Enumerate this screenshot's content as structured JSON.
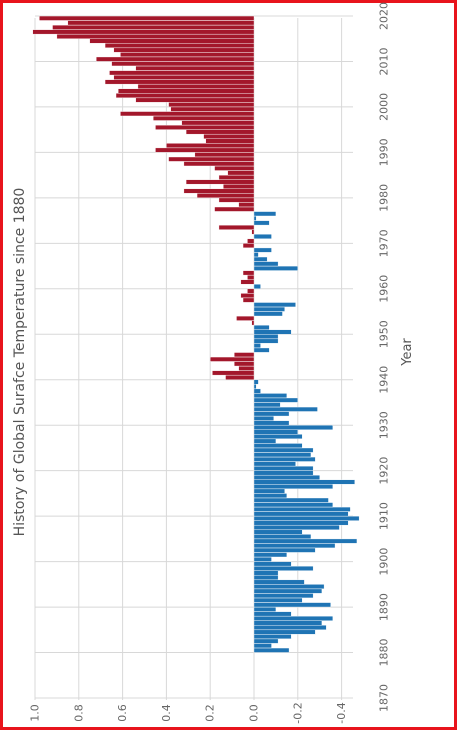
{
  "chart_data": {
    "type": "bar",
    "orientation": "rotated-90-clockwise",
    "title": "History of Global Surafce Temperature since 1880",
    "xlabel": "Year",
    "ylabel": "",
    "x": [
      1880,
      1881,
      1882,
      1883,
      1884,
      1885,
      1886,
      1887,
      1888,
      1889,
      1890,
      1891,
      1892,
      1893,
      1894,
      1895,
      1896,
      1897,
      1898,
      1899,
      1900,
      1901,
      1902,
      1903,
      1904,
      1905,
      1906,
      1907,
      1908,
      1909,
      1910,
      1911,
      1912,
      1913,
      1914,
      1915,
      1916,
      1917,
      1918,
      1919,
      1920,
      1921,
      1922,
      1923,
      1924,
      1925,
      1926,
      1927,
      1928,
      1929,
      1930,
      1931,
      1932,
      1933,
      1934,
      1935,
      1936,
      1937,
      1938,
      1939,
      1940,
      1941,
      1942,
      1943,
      1944,
      1945,
      1946,
      1947,
      1948,
      1949,
      1950,
      1951,
      1952,
      1953,
      1954,
      1955,
      1956,
      1957,
      1958,
      1959,
      1960,
      1961,
      1962,
      1963,
      1964,
      1965,
      1966,
      1967,
      1968,
      1969,
      1970,
      1971,
      1972,
      1973,
      1974,
      1975,
      1976,
      1977,
      1978,
      1979,
      1980,
      1981,
      1982,
      1983,
      1984,
      1985,
      1986,
      1987,
      1988,
      1989,
      1990,
      1991,
      1992,
      1993,
      1994,
      1995,
      1996,
      1997,
      1998,
      1999,
      2000,
      2001,
      2002,
      2003,
      2004,
      2005,
      2006,
      2007,
      2008,
      2009,
      2010,
      2011,
      2012,
      2013,
      2014,
      2015,
      2016,
      2017,
      2018,
      2019
    ],
    "values": [
      -0.16,
      -0.08,
      -0.11,
      -0.17,
      -0.28,
      -0.33,
      -0.31,
      -0.36,
      -0.17,
      -0.1,
      -0.35,
      -0.22,
      -0.27,
      -0.31,
      -0.32,
      -0.23,
      -0.11,
      -0.11,
      -0.27,
      -0.17,
      -0.08,
      -0.15,
      -0.28,
      -0.37,
      -0.47,
      -0.26,
      -0.22,
      -0.39,
      -0.43,
      -0.48,
      -0.43,
      -0.44,
      -0.36,
      -0.34,
      -0.15,
      -0.14,
      -0.36,
      -0.46,
      -0.3,
      -0.27,
      -0.27,
      -0.19,
      -0.28,
      -0.26,
      -0.27,
      -0.22,
      -0.1,
      -0.22,
      -0.2,
      -0.36,
      -0.16,
      -0.09,
      -0.16,
      -0.29,
      -0.12,
      -0.2,
      -0.15,
      -0.03,
      -0.01,
      -0.02,
      0.13,
      0.19,
      0.07,
      0.09,
      0.2,
      0.09,
      -0.07,
      -0.03,
      -0.11,
      -0.11,
      -0.17,
      -0.07,
      0.01,
      0.08,
      -0.13,
      -0.14,
      -0.19,
      0.05,
      0.06,
      0.03,
      -0.03,
      0.06,
      0.03,
      0.05,
      -0.2,
      -0.11,
      -0.06,
      -0.02,
      -0.08,
      0.05,
      0.03,
      -0.08,
      0.01,
      0.16,
      -0.07,
      -0.01,
      -0.1,
      0.18,
      0.07,
      0.16,
      0.26,
      0.32,
      0.14,
      0.31,
      0.16,
      0.12,
      0.18,
      0.32,
      0.39,
      0.27,
      0.45,
      0.4,
      0.22,
      0.23,
      0.31,
      0.45,
      0.33,
      0.46,
      0.61,
      0.38,
      0.39,
      0.54,
      0.63,
      0.62,
      0.53,
      0.68,
      0.64,
      0.66,
      0.54,
      0.65,
      0.72,
      0.61,
      0.64,
      0.68,
      0.75,
      0.9,
      1.01,
      0.92,
      0.85,
      0.98
    ],
    "xticks": [
      "1870",
      "1880",
      "1890",
      "1900",
      "1910",
      "1920",
      "1930",
      "1940",
      "1950",
      "1960",
      "1970",
      "1980",
      "1990",
      "2000",
      "2010",
      "2020"
    ],
    "xlim": [
      1870,
      2020
    ],
    "yticks": [
      "1.0",
      "0.8",
      "0.6",
      "0.4",
      "0.2",
      "0.0",
      "-0.2",
      "-0.4"
    ],
    "ylim": [
      -0.4,
      1.0
    ],
    "grid": true,
    "legend": "none",
    "colors": {
      "positive": "#a3172b",
      "negative": "#1f74b4",
      "grid": "#d8d8d8",
      "frame": "#e8141c",
      "axis": "#c0c0c0"
    }
  }
}
